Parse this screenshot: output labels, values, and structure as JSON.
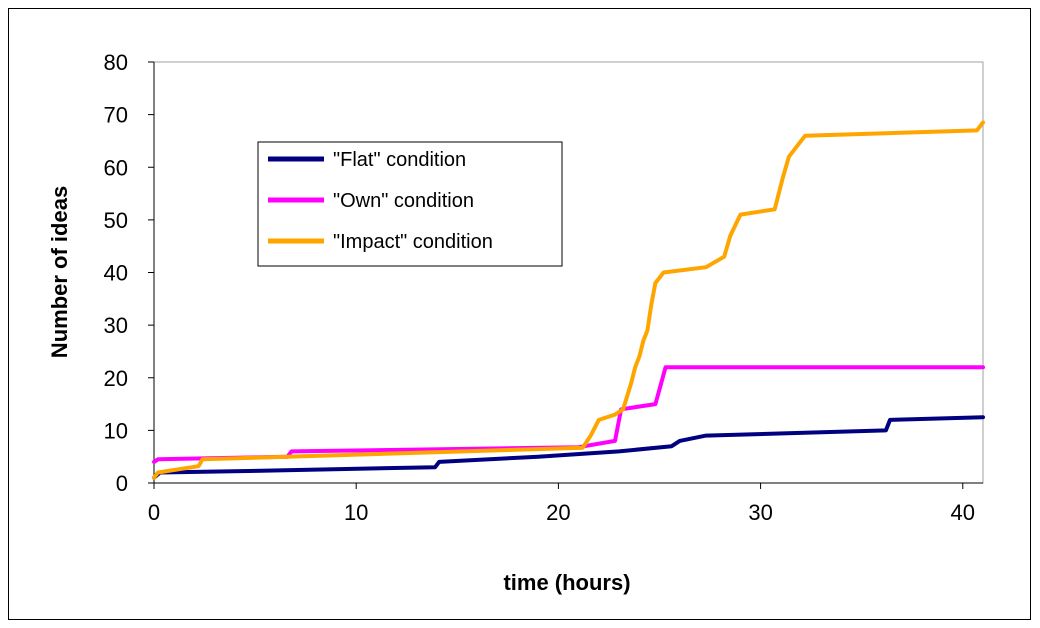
{
  "chart_data": {
    "type": "line",
    "xlabel": "time (hours)",
    "ylabel": "Number of ideas",
    "xlim": [
      0,
      41
    ],
    "ylim": [
      0,
      80
    ],
    "xticks": [
      0,
      10,
      20,
      30,
      40
    ],
    "yticks": [
      0,
      10,
      20,
      30,
      40,
      50,
      60,
      70,
      80
    ],
    "grid": false,
    "legend_position": "upper-left inside plot",
    "series": [
      {
        "name": "\"Flat\" condition",
        "color": "#000080",
        "x": [
          0,
          0.3,
          5,
          13.9,
          14.1,
          19,
          23,
          25.6,
          26,
          27.3,
          36.2,
          36.4,
          41
        ],
        "y": [
          1,
          2,
          2.3,
          3,
          4,
          5,
          6,
          7,
          8,
          9,
          10,
          12,
          12.5
        ]
      },
      {
        "name": "\"Own\" condition",
        "color": "#ff00ff",
        "x": [
          0,
          0.2,
          6.6,
          6.8,
          21,
          22.8,
          23.1,
          24.8,
          25.3,
          41
        ],
        "y": [
          4,
          4.5,
          5,
          6,
          6.8,
          8,
          14,
          15,
          22,
          22
        ]
      },
      {
        "name": "\"Impact\" condition",
        "color": "#ffa500",
        "x": [
          0,
          0.2,
          2.2,
          2.4,
          21.2,
          21.6,
          22,
          22.8,
          23.2,
          23.6,
          23.8,
          24,
          24.2,
          24.4,
          24.6,
          24.8,
          25.2,
          27.3,
          28.2,
          28.5,
          29,
          30.7,
          31.1,
          31.4,
          32.2,
          40.7,
          41
        ],
        "y": [
          1,
          2,
          3.2,
          4.5,
          6.7,
          9,
          12,
          13,
          14,
          19,
          22,
          24,
          27,
          29,
          34,
          38,
          40,
          41,
          43,
          47,
          51,
          52,
          58,
          62,
          66,
          67,
          68.5
        ]
      }
    ]
  }
}
